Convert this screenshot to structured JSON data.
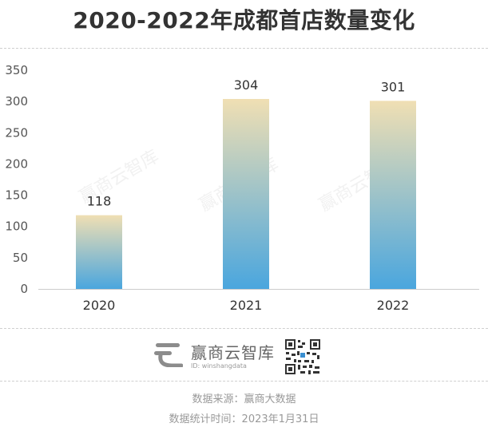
{
  "chart_data": {
    "type": "bar",
    "title": "2020-2022年成都首店数量变化",
    "categories": [
      "2020",
      "2021",
      "2022"
    ],
    "values": [
      118,
      304,
      301
    ],
    "data_labels": [
      "118",
      "304",
      "301"
    ],
    "ylim": [
      0,
      350
    ],
    "yticks": [
      "0",
      "50",
      "100",
      "150",
      "200",
      "250",
      "300",
      "350"
    ],
    "ytick_values": [
      0,
      50,
      100,
      150,
      200,
      250,
      300,
      350
    ],
    "xlabel": "",
    "ylabel": "",
    "grid": false,
    "legend": "none",
    "bar_gradient": {
      "top": "#f0dfb3",
      "bottom": "#4aa6de"
    }
  },
  "brand": {
    "name": "赢商云智库",
    "id_text": "ID: winshangdata",
    "watermark": "赢商云智库"
  },
  "footer": {
    "source": "数据来源：赢商大数据",
    "time": "数据统计时间：2023年1月31日"
  }
}
